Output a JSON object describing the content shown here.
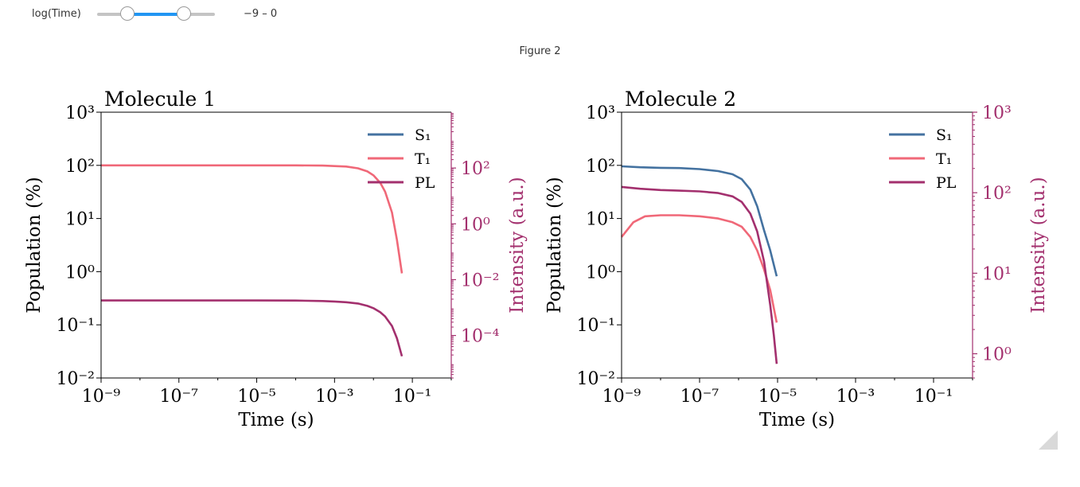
{
  "widget": {
    "label": "log(Time)",
    "readout": "−9 – 0",
    "range": [
      -9,
      0
    ],
    "value": [
      -8,
      -3
    ],
    "accent": "#2196f3"
  },
  "figure": {
    "title": "Figure 2"
  },
  "colors": {
    "S1": "#4472a0",
    "T1": "#f06878",
    "PL": "#a3306e",
    "right_axis": "#a3306e"
  },
  "chart_data": [
    {
      "type": "line",
      "title": "Molecule 1",
      "xlabel": "Time (s)",
      "ylabel": "Population (%)",
      "y2label": "Intensity (a.u.)",
      "xscale": "log",
      "yscale": "log",
      "y2scale": "log",
      "xlim": [
        1e-09,
        1
      ],
      "ylim": [
        0.01,
        1000
      ],
      "y2lim": [
        3e-06,
        10000
      ],
      "xticks": [
        "10⁻⁹",
        "10⁻⁷",
        "10⁻⁵",
        "10⁻³",
        "10⁻¹"
      ],
      "yticks": [
        "10⁻²",
        "10⁻¹",
        "10⁰",
        "10¹",
        "10²",
        "10³"
      ],
      "y2ticks": [
        "10⁻⁴",
        "10⁻²",
        "10⁰",
        "10²"
      ],
      "legend": {
        "position": "upper right",
        "entries": [
          "S₁",
          "T₁",
          "PL"
        ]
      },
      "grid": false,
      "series": [
        {
          "name": "S₁",
          "axis": "left",
          "x": [],
          "y": []
        },
        {
          "name": "T₁",
          "axis": "left",
          "x": [
            1e-09,
            1e-08,
            1e-07,
            1e-06,
            1e-05,
            0.0001,
            0.0005,
            0.001,
            0.002,
            0.004,
            0.007,
            0.01,
            0.015,
            0.02,
            0.03,
            0.04,
            0.054
          ],
          "y": [
            100,
            100,
            100,
            100,
            100,
            100,
            99,
            97,
            95,
            88,
            77,
            65,
            47,
            32,
            13,
            4,
            0.93
          ]
        },
        {
          "name": "PL",
          "axis": "right",
          "x": [
            1e-09,
            1e-08,
            1e-07,
            1e-06,
            1e-05,
            0.0001,
            0.0005,
            0.001,
            0.002,
            0.004,
            0.007,
            0.01,
            0.015,
            0.02,
            0.03,
            0.04,
            0.054
          ],
          "y": [
            0.0018,
            0.0018,
            0.0018,
            0.0018,
            0.0018,
            0.00178,
            0.00172,
            0.00165,
            0.00155,
            0.0014,
            0.00115,
            0.00095,
            0.00068,
            0.00048,
            0.00022,
            8e-05,
            1.8e-05
          ]
        }
      ]
    },
    {
      "type": "line",
      "title": "Molecule 2",
      "xlabel": "Time (s)",
      "ylabel": "Population (%)",
      "y2label": "Intensity (a.u.)",
      "xscale": "log",
      "yscale": "log",
      "y2scale": "log",
      "xlim": [
        1e-09,
        1
      ],
      "ylim": [
        0.01,
        1000
      ],
      "y2lim": [
        0.5,
        1000
      ],
      "xticks": [
        "10⁻⁹",
        "10⁻⁷",
        "10⁻⁵",
        "10⁻³",
        "10⁻¹"
      ],
      "yticks": [
        "10⁻²",
        "10⁻¹",
        "10⁰",
        "10¹",
        "10²",
        "10³"
      ],
      "y2ticks": [
        "10⁰",
        "10¹",
        "10²",
        "10³"
      ],
      "legend": {
        "position": "upper right",
        "entries": [
          "S₁",
          "T₁",
          "PL"
        ]
      },
      "grid": false,
      "series": [
        {
          "name": "S₁",
          "axis": "left",
          "x": [
            1e-09,
            3e-09,
            1e-08,
            3e-08,
            1e-07,
            3e-07,
            7e-07,
            1.2e-06,
            2e-06,
            3e-06,
            4.5e-06,
            6.5e-06,
            9.5e-06
          ],
          "y": [
            96,
            92,
            90,
            89,
            85,
            78,
            68,
            55,
            35,
            17,
            6,
            2.5,
            0.82
          ]
        },
        {
          "name": "T₁",
          "axis": "left",
          "x": [
            1e-09,
            2e-09,
            4e-09,
            1e-08,
            3e-08,
            1e-07,
            3e-07,
            7e-07,
            1.2e-06,
            2e-06,
            3e-06,
            4.5e-06,
            6.5e-06,
            9.5e-06
          ],
          "y": [
            4.5,
            8.5,
            11,
            11.5,
            11.5,
            11,
            10,
            8.5,
            7,
            4.5,
            2.5,
            1.1,
            0.45,
            0.11
          ]
        },
        {
          "name": "PL",
          "axis": "right",
          "x": [
            1e-09,
            3e-09,
            1e-08,
            3e-08,
            1e-07,
            3e-07,
            7e-07,
            1.2e-06,
            2e-06,
            3e-06,
            4.5e-06,
            6.5e-06,
            8e-06,
            9.5e-06
          ],
          "y": [
            118,
            112,
            108,
            106,
            104,
            99,
            90,
            77,
            55,
            33,
            14,
            4,
            1.7,
            0.75
          ]
        }
      ]
    }
  ]
}
